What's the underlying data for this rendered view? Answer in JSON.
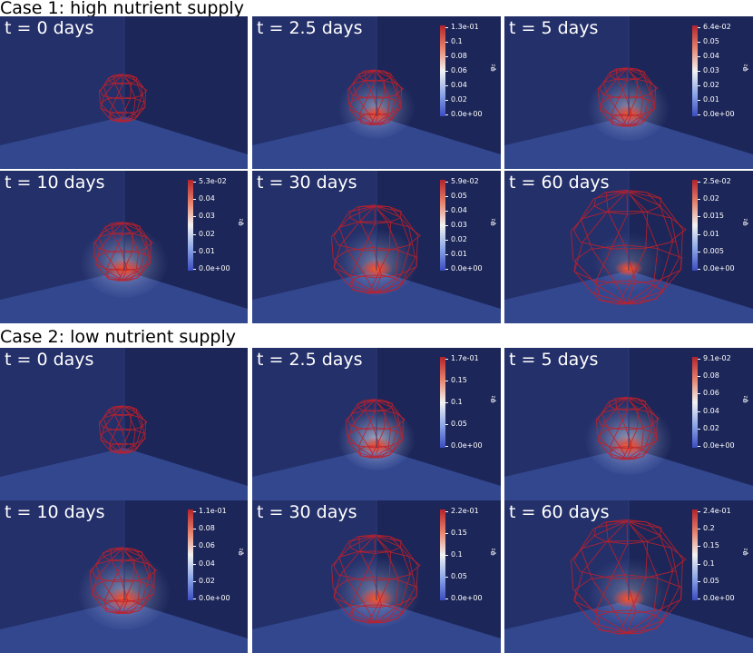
{
  "colors": {
    "background_far": "#1e2a5e",
    "wall_left": "#24306a",
    "wall_right": "#1c2658",
    "floor": "#33478f",
    "mesh": "#c0202a",
    "label": "#ffffff"
  },
  "colorbar_quantity": "φ₂",
  "cases": [
    {
      "title": "Case 1: high nutrient supply",
      "panels": [
        {
          "time_label": "t = 0 days",
          "spread": 0.0,
          "cloud": 0.0,
          "mesh_radius": 0.45,
          "colorbar": null
        },
        {
          "time_label": "t = 2.5 days",
          "spread": 0.5,
          "cloud": 0.6,
          "mesh_radius": 0.55,
          "colorbar": {
            "max_label": "1.3e-01",
            "tick_labels": [
              "0.1",
              "0.08",
              "0.06",
              "0.04",
              "0.02",
              "0.0e+00"
            ]
          }
        },
        {
          "time_label": "t = 5 days",
          "spread": 0.6,
          "cloud": 0.6,
          "mesh_radius": 0.6,
          "colorbar": {
            "max_label": "6.4e-02",
            "tick_labels": [
              "0.05",
              "0.04",
              "0.03",
              "0.02",
              "0.01",
              "0.0e+00"
            ]
          }
        },
        {
          "time_label": "t = 10 days",
          "spread": 0.7,
          "cloud": 0.6,
          "mesh_radius": 0.6,
          "colorbar": {
            "max_label": "5.3e-02",
            "tick_labels": [
              "0.04",
              "0.03",
              "0.02",
              "0.01",
              "0.0e+00"
            ]
          }
        },
        {
          "time_label": "t = 30 days",
          "spread": 0.6,
          "cloud": 0.5,
          "mesh_radius": 1.0,
          "colorbar": {
            "max_label": "5.9e-02",
            "tick_labels": [
              "0.05",
              "0.04",
              "0.03",
              "0.02",
              "0.01",
              "0.0e+00"
            ]
          }
        },
        {
          "time_label": "t = 60 days",
          "spread": 0.4,
          "cloud": 0.3,
          "mesh_radius": 1.35,
          "colorbar": {
            "max_label": "2.5e-02",
            "tick_labels": [
              "0.02",
              "0.015",
              "0.01",
              "0.005",
              "0.0e+00"
            ]
          }
        }
      ]
    },
    {
      "title": "Case 2: low nutrient supply",
      "panels": [
        {
          "time_label": "t = 0 days",
          "spread": 0.0,
          "cloud": 0.0,
          "mesh_radius": 0.45,
          "colorbar": null
        },
        {
          "time_label": "t = 2.5 days",
          "spread": 0.5,
          "cloud": 0.8,
          "mesh_radius": 0.6,
          "colorbar": {
            "max_label": "1.7e-01",
            "tick_labels": [
              "0.15",
              "0.1",
              "0.05",
              "0.0e+00"
            ]
          }
        },
        {
          "time_label": "t = 5 days",
          "spread": 0.7,
          "cloud": 0.7,
          "mesh_radius": 0.65,
          "colorbar": {
            "max_label": "9.1e-02",
            "tick_labels": [
              "0.08",
              "0.06",
              "0.04",
              "0.02",
              "0.0e+00"
            ]
          }
        },
        {
          "time_label": "t = 10 days",
          "spread": 0.8,
          "cloud": 0.6,
          "mesh_radius": 0.7,
          "colorbar": {
            "max_label": "1.1e-01",
            "tick_labels": [
              "0.08",
              "0.06",
              "0.04",
              "0.02",
              "0.0e+00"
            ]
          }
        },
        {
          "time_label": "t = 30 days",
          "spread": 0.7,
          "cloud": 0.5,
          "mesh_radius": 1.0,
          "colorbar": {
            "max_label": "2.2e-01",
            "tick_labels": [
              "0.15",
              "0.1",
              "0.05",
              "0.0e+00"
            ]
          }
        },
        {
          "time_label": "t = 60 days",
          "spread": 0.6,
          "cloud": 0.4,
          "mesh_radius": 1.35,
          "colorbar": {
            "max_label": "2.4e-01",
            "tick_labels": [
              "0.2",
              "0.15",
              "0.1",
              "0.05",
              "0.0e+00"
            ]
          }
        }
      ]
    }
  ]
}
